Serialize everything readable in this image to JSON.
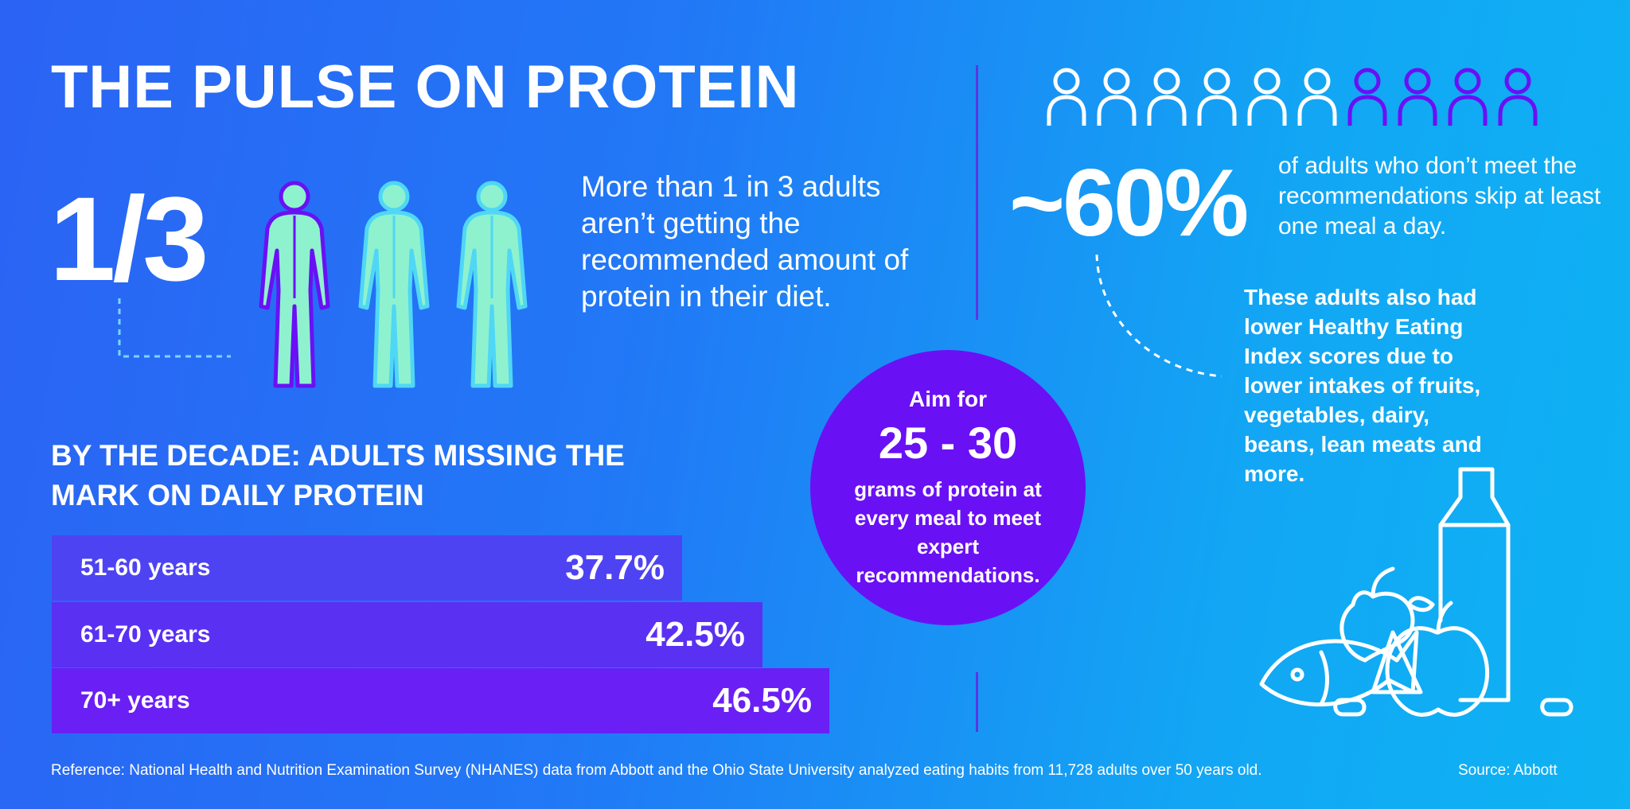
{
  "title": "THE PULSE ON PROTEIN",
  "stat_fraction": "1/3",
  "stat_fraction_desc": "More than 1 in 3 adults aren’t getting the recommended amount of protein in their diet.",
  "decade_heading": "BY THE DECADE: ADULTS MISSING THE MARK ON DAILY PROTEIN",
  "chart_data": {
    "type": "bar",
    "categories": [
      "51-60 years",
      "61-70 years",
      "70+ years"
    ],
    "values": [
      37.7,
      42.5,
      46.5
    ],
    "value_labels": [
      "37.7%",
      "42.5%",
      "46.5%"
    ],
    "bar_colors": [
      "#4e43f3",
      "#5a30f3",
      "#6a1ff4"
    ]
  },
  "circle": {
    "aim": "Aim for",
    "range": "25 - 30",
    "sub": "grams of protein at every meal to meet expert recommendations."
  },
  "skip_stat": "~60%",
  "skip_desc": "of adults who don’t meet the recommendations skip at least one meal a day.",
  "people_total": 10,
  "people_highlighted": 4,
  "lower_desc": "These adults also had lower Healthy Eating Index scores due to lower intakes of fruits, vegetables, dairy, beans, lean meats and more.",
  "reference": "Reference: National Health and Nutrition Examination Survey (NHANES) data from Abbott and the Ohio State University analyzed eating habits from 11,728 adults over 50 years old.",
  "source": "Source: Abbott",
  "colors": {
    "purple": "#6a10f5",
    "mint": "#8ff2cf",
    "dashed": "#8fdcff"
  },
  "icons": {
    "people_row": "person-outline-icon",
    "bodies": "human-figure-icon",
    "foods": "groceries-icon"
  }
}
